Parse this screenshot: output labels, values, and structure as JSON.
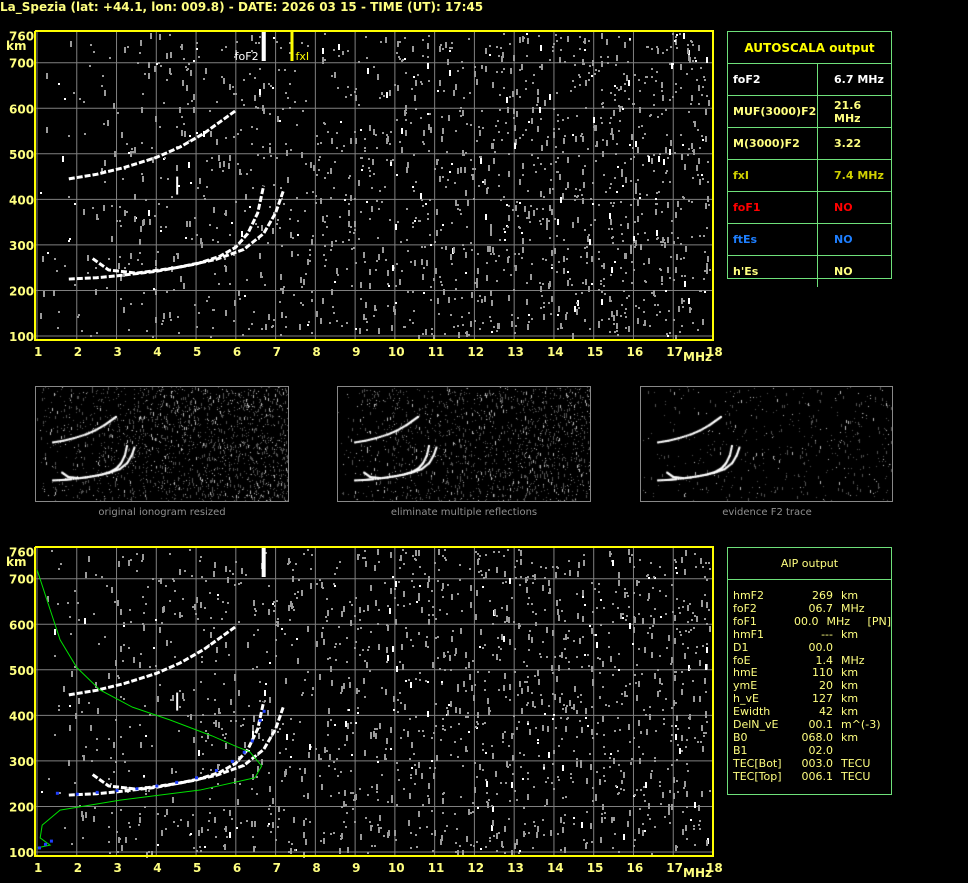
{
  "title": "La_Spezia (lat: +44.1, lon: 009.8) - DATE: 2026 03 15 - TIME (UT): 17:45",
  "colors": {
    "axis": "#ffff00",
    "grid": "#808080",
    "table_border": "#6ee07a",
    "trace": "#ffffff",
    "profile": "#00e000",
    "aip_points": "#2040ff"
  },
  "chart_data": [
    {
      "type": "scatter",
      "name_label": "ionogram",
      "xlabel": "MHz",
      "ylabel": "km",
      "xlim": [
        1,
        18
      ],
      "ylim": [
        100,
        760
      ],
      "xticks": [
        "1",
        "2",
        "3",
        "4",
        "5",
        "6",
        "7",
        "8",
        "9",
        "10",
        "11",
        "12",
        "13",
        "14",
        "15",
        "16",
        "17",
        "18"
      ],
      "yticks": [
        "100",
        "200",
        "300",
        "400",
        "500",
        "600",
        "700",
        "760"
      ],
      "grid": true,
      "markers": [
        {
          "label": "foF2",
          "x": 6.7,
          "color": "#ffffff"
        },
        {
          "label": "fxI",
          "x": 7.4,
          "color": "#ffff00"
        }
      ],
      "traces": [
        {
          "kind": "o",
          "points": [
            [
              1.8,
              225
            ],
            [
              2.5,
              228
            ],
            [
              3,
              232
            ],
            [
              4,
              242
            ],
            [
              5,
              258
            ],
            [
              5.6,
              275
            ],
            [
              6.0,
              295
            ],
            [
              6.3,
              325
            ],
            [
              6.55,
              370
            ],
            [
              6.7,
              430
            ]
          ]
        },
        {
          "kind": "x",
          "points": [
            [
              2.4,
              270
            ],
            [
              2.8,
              245
            ],
            [
              3.5,
              238
            ],
            [
              4.5,
              250
            ],
            [
              5.5,
              268
            ],
            [
              6.2,
              290
            ],
            [
              6.7,
              325
            ],
            [
              7.0,
              370
            ],
            [
              7.2,
              420
            ]
          ]
        },
        {
          "kind": "o2",
          "points": [
            [
              1.8,
              445
            ],
            [
              2.5,
              455
            ],
            [
              3.2,
              470
            ],
            [
              4,
              492
            ],
            [
              4.6,
              515
            ],
            [
              5.2,
              545
            ],
            [
              5.6,
              570
            ],
            [
              6,
              595
            ]
          ]
        }
      ]
    },
    {
      "type": "scatter",
      "name_label": "ionogram-aip",
      "xlabel": "MHz",
      "ylabel": "km",
      "xlim": [
        1,
        18
      ],
      "ylim": [
        100,
        760
      ],
      "xticks": [
        "1",
        "2",
        "3",
        "4",
        "5",
        "6",
        "7",
        "8",
        "9",
        "10",
        "11",
        "12",
        "13",
        "14",
        "15",
        "16",
        "17",
        "18"
      ],
      "yticks": [
        "100",
        "200",
        "300",
        "400",
        "500",
        "600",
        "700",
        "760"
      ],
      "grid": true,
      "profile": [
        [
          1,
          720
        ],
        [
          1.3,
          640
        ],
        [
          1.58,
          566
        ],
        [
          2.0,
          505
        ],
        [
          2.58,
          456
        ],
        [
          3.4,
          418
        ],
        [
          4.34,
          390
        ],
        [
          5.4,
          355
        ],
        [
          6.0,
          332
        ],
        [
          6.35,
          320
        ],
        [
          6.65,
          289
        ],
        [
          6.48,
          263
        ],
        [
          5.1,
          236
        ],
        [
          3.09,
          214
        ],
        [
          1.58,
          192
        ],
        [
          1.13,
          159
        ],
        [
          1.08,
          131
        ],
        [
          1.33,
          115
        ],
        [
          1,
          109
        ]
      ],
      "aip_points": [
        [
          1.05,
          110
        ],
        [
          1.2,
          118
        ],
        [
          1.35,
          125
        ],
        [
          1.5,
          230
        ],
        [
          2,
          228
        ],
        [
          2.5,
          232
        ],
        [
          3,
          236
        ],
        [
          3.5,
          240
        ],
        [
          4,
          246
        ],
        [
          4.5,
          254
        ],
        [
          5,
          264
        ],
        [
          5.5,
          280
        ],
        [
          5.9,
          300
        ],
        [
          6.2,
          320
        ],
        [
          6.4,
          345
        ],
        [
          6.6,
          390
        ],
        [
          6.7,
          410
        ]
      ]
    }
  ],
  "autoscala": {
    "title": "AUTOSCALA output",
    "rows": [
      {
        "k": "foF2",
        "v": "6.7 MHz",
        "color": "#ffffff"
      },
      {
        "k": "MUF(3000)F2",
        "v": "21.6 MHz",
        "color": "#ffff80"
      },
      {
        "k": "M(3000)F2",
        "v": "3.22",
        "color": "#ffff80"
      },
      {
        "k": "fxI",
        "v": "7.4 MHz",
        "color": "#d0d000"
      },
      {
        "k": "foF1",
        "v": "NO",
        "color": "#ff0000"
      },
      {
        "k": "ftEs",
        "v": "NO",
        "color": "#1e7fff"
      },
      {
        "k": "h'Es",
        "v": "NO",
        "color": "#ffff80"
      }
    ]
  },
  "aip": {
    "title": "AIP output",
    "rows": [
      [
        "hmF2",
        "269",
        "km",
        ""
      ],
      [
        "foF2",
        "06.7",
        "MHz",
        ""
      ],
      [
        "foF1",
        "00.0",
        "MHz",
        "[PN]"
      ],
      [
        "hmF1",
        "---",
        "km",
        ""
      ],
      [
        "D1",
        "00.0",
        "",
        ""
      ],
      [
        "foE",
        "1.4",
        "MHz",
        ""
      ],
      [
        "hmE",
        "110",
        "km",
        ""
      ],
      [
        "ymE",
        "20",
        "km",
        ""
      ],
      [
        "h_vE",
        "127",
        "km",
        ""
      ],
      [
        "Ewidth",
        "42",
        "km",
        ""
      ],
      [
        "DelN_vE",
        "00.1",
        "m^(-3)",
        ""
      ],
      [
        "B0",
        "068.0",
        "km",
        ""
      ],
      [
        "B1",
        "02.0",
        "",
        ""
      ],
      [
        "TEC[Bot]",
        "003.0",
        "TECU",
        ""
      ],
      [
        "TEC[Top]",
        "006.1",
        "TECU",
        ""
      ]
    ]
  },
  "thumbs": [
    "original ionogram resized",
    "eliminate multiple reflections",
    "evidence F2 trace"
  ]
}
